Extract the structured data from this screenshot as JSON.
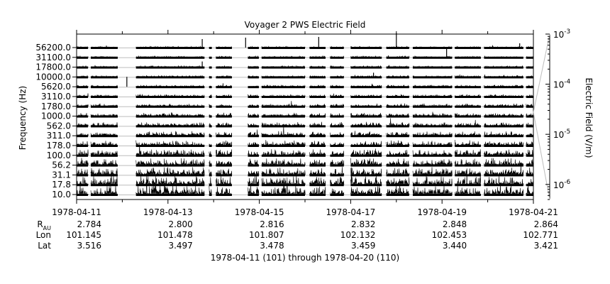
{
  "chart_data": {
    "type": "line",
    "title": "Voyager 2 PWS Electric Field",
    "ylabel": "Frequency (Hz)",
    "xlabel": "1978-04-11 (101) through 1978-04-20 (110)",
    "x_tick_labels": [
      "1978-04-11",
      "1978-04-13",
      "1978-04-15",
      "1978-04-17",
      "1978-04-19",
      "1978-04-21"
    ],
    "channels": [
      "56200.0",
      "31100.0",
      "17800.0",
      "10000.0",
      "5620.0",
      "3110.0",
      "1780.0",
      "1000.0",
      "562.0",
      "311.0",
      "178.0",
      "100.0",
      "56.2",
      "31.1",
      "17.8",
      "10.0"
    ],
    "colorbar": {
      "label": "Electric Field (V/m)",
      "scale": "log",
      "range": [
        5e-07,
        0.001
      ],
      "tick_labels": [
        "10",
        "10",
        "10",
        "10"
      ],
      "tick_exponents": [
        "-3",
        "-4",
        "-5",
        "-6"
      ]
    },
    "ephemeris": {
      "rows": [
        {
          "label": "R",
          "sub": "AU",
          "values": [
            "2.784",
            "2.800",
            "2.816",
            "2.832",
            "2.848",
            "2.864"
          ]
        },
        {
          "label": "Lon",
          "sub": "",
          "values": [
            "101.145",
            "101.478",
            "101.807",
            "102.132",
            "102.453",
            "102.771"
          ]
        },
        {
          "label": "Lat",
          "sub": "",
          "values": [
            "3.516",
            "3.497",
            "3.478",
            "3.459",
            "3.440",
            "3.421"
          ]
        }
      ]
    },
    "data_intervals_days": [
      [
        0,
        0.25
      ],
      [
        0.31,
        0.9
      ],
      [
        1.3,
        2.8
      ],
      [
        2.9,
        2.96
      ],
      [
        3.05,
        3.4
      ],
      [
        3.75,
        3.99
      ],
      [
        4.05,
        5.0
      ],
      [
        5.1,
        5.45
      ],
      [
        5.55,
        5.85
      ],
      [
        6.0,
        6.68
      ],
      [
        6.78,
        7.28
      ],
      [
        7.36,
        8.22
      ],
      [
        8.28,
        8.85
      ],
      [
        8.92,
        9.78
      ],
      [
        9.84,
        10.0
      ]
    ]
  }
}
